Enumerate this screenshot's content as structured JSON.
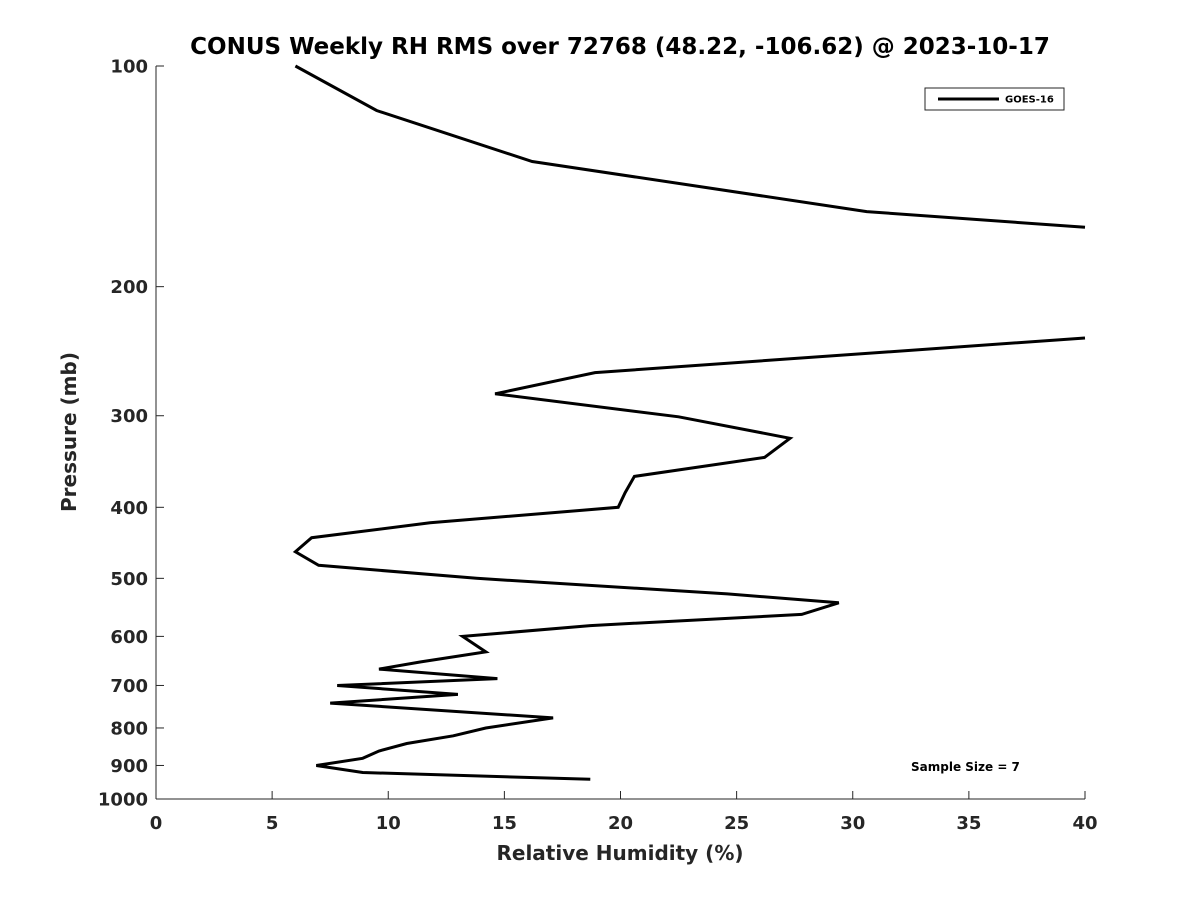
{
  "chart_data": {
    "type": "line",
    "title": "CONUS Weekly RH RMS over 72768 (48.22, -106.62) @ 2023-10-17",
    "xlabel": "Relative Humidity (%)",
    "ylabel": "Pressure (mb)",
    "xlim": [
      0,
      40
    ],
    "ylim": [
      100,
      1000
    ],
    "yscale": "log",
    "y_reversed": true,
    "grid": false,
    "legend_position": "top-right",
    "x_ticks": [
      "0",
      "5",
      "10",
      "15",
      "20",
      "25",
      "30",
      "35",
      "40"
    ],
    "y_ticks": [
      "100",
      "200",
      "300",
      "400",
      "500",
      "600",
      "700",
      "800",
      "900",
      "1000"
    ],
    "annotation": "Sample Size = 7",
    "series": [
      {
        "name": "GOES-16",
        "color": "#000000",
        "points": [
          [
            6.0,
            100
          ],
          [
            9.5,
            115
          ],
          [
            16.2,
            135
          ],
          [
            30.6,
            158
          ],
          [
            40.0,
            166
          ],
          [
            null,
            175
          ],
          [
            40.0,
            235
          ],
          [
            18.9,
            262
          ],
          [
            14.6,
            280
          ],
          [
            22.5,
            301
          ],
          [
            27.3,
            322
          ],
          [
            26.2,
            342
          ],
          [
            20.6,
            363
          ],
          [
            20.2,
            382
          ],
          [
            19.9,
            400
          ],
          [
            11.8,
            420
          ],
          [
            6.7,
            440
          ],
          [
            6.0,
            460
          ],
          [
            7.0,
            480
          ],
          [
            13.8,
            500
          ],
          [
            24.6,
            525
          ],
          [
            29.4,
            540
          ],
          [
            27.8,
            560
          ],
          [
            18.7,
            580
          ],
          [
            13.2,
            600
          ],
          [
            14.2,
            630
          ],
          [
            11.4,
            650
          ],
          [
            9.6,
            665
          ],
          [
            14.7,
            685
          ],
          [
            7.8,
            700
          ],
          [
            13.0,
            720
          ],
          [
            7.5,
            740
          ],
          [
            17.1,
            775
          ],
          [
            14.2,
            800
          ],
          [
            12.8,
            820
          ],
          [
            10.8,
            840
          ],
          [
            9.6,
            860
          ],
          [
            8.9,
            880
          ],
          [
            6.9,
            900
          ],
          [
            8.9,
            920
          ],
          [
            18.7,
            940
          ]
        ]
      }
    ]
  }
}
